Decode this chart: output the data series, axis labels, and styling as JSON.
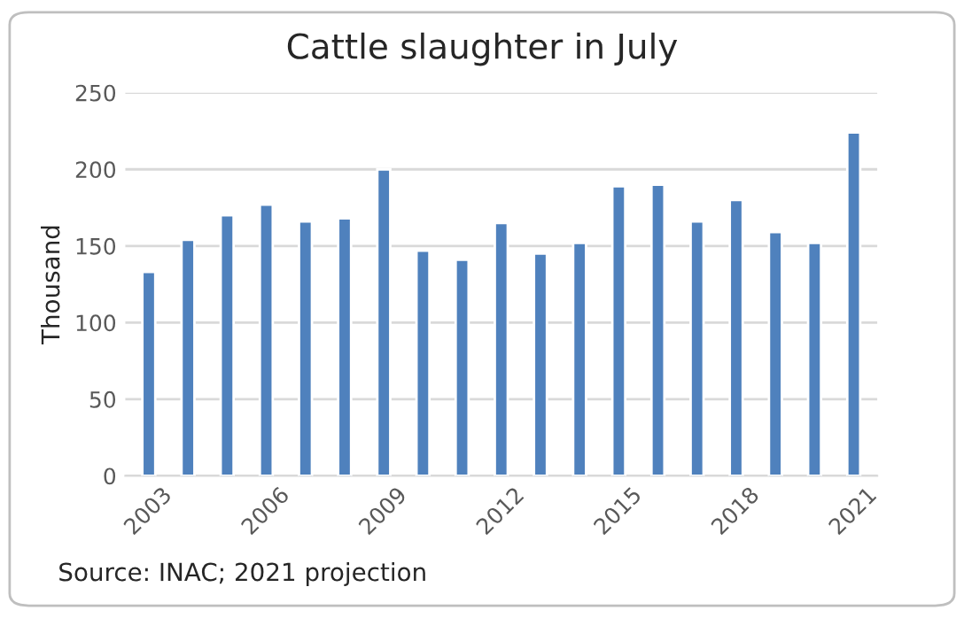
{
  "chart_data": {
    "type": "bar",
    "title": "Cattle slaughter in July",
    "ylabel": "Thousand",
    "categories": [
      "2003",
      null,
      null,
      "2006",
      null,
      null,
      "2009",
      null,
      null,
      "2012",
      null,
      null,
      "2015",
      null,
      null,
      "2018",
      null,
      null,
      "2021"
    ],
    "values": [
      133,
      154,
      170,
      177,
      166,
      168,
      200,
      147,
      141,
      165,
      145,
      152,
      189,
      190,
      166,
      180,
      159,
      152,
      224
    ],
    "color": "#4f81bd",
    "ylim": [
      0,
      250
    ],
    "yticks": [
      0,
      50,
      100,
      150,
      200,
      250
    ],
    "grid": "y",
    "annotations": [
      "Source: INAC; 2021 projection"
    ]
  }
}
